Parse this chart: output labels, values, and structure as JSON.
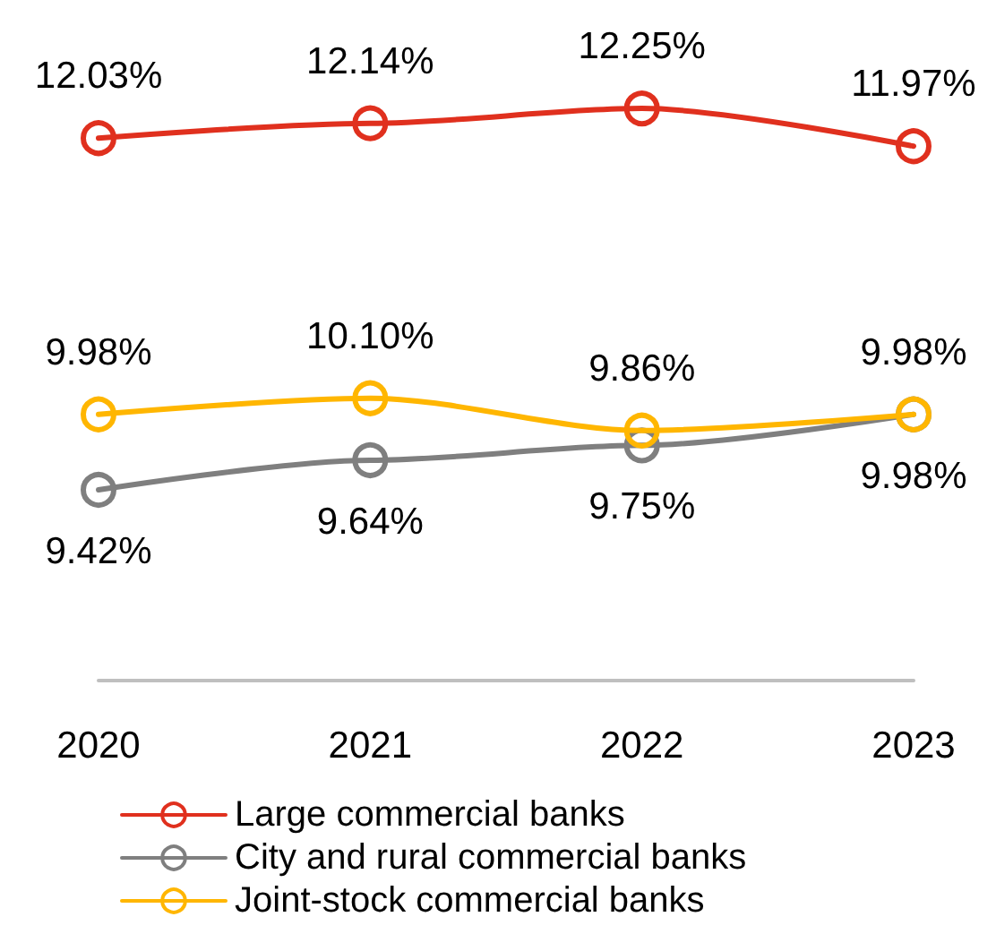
{
  "chart_data": {
    "type": "line",
    "categories": [
      "2020",
      "2021",
      "2022",
      "2023"
    ],
    "tick_labels": "x",
    "grid": false,
    "legend": "bottom",
    "marker": "circle",
    "line_style": "solid",
    "series": [
      {
        "name": "Large commercial banks",
        "color": "#e0301e",
        "values": [
          12.03,
          12.14,
          12.25,
          11.97
        ],
        "value_labels": [
          "12.03%",
          "12.14%",
          "12.25%",
          "11.97%"
        ]
      },
      {
        "name": "City and rural commercial banks",
        "color": "#7f7f7f",
        "values": [
          9.42,
          9.64,
          9.75,
          9.98
        ],
        "value_labels": [
          "9.42%",
          "9.64%",
          "9.75%",
          "9.98%"
        ]
      },
      {
        "name": "Joint-stock commercial banks",
        "color": "#ffb600",
        "values": [
          9.98,
          10.1,
          9.86,
          9.98
        ],
        "value_labels": [
          "9.98%",
          "10.10%",
          "9.86%",
          "9.98%"
        ]
      }
    ]
  }
}
